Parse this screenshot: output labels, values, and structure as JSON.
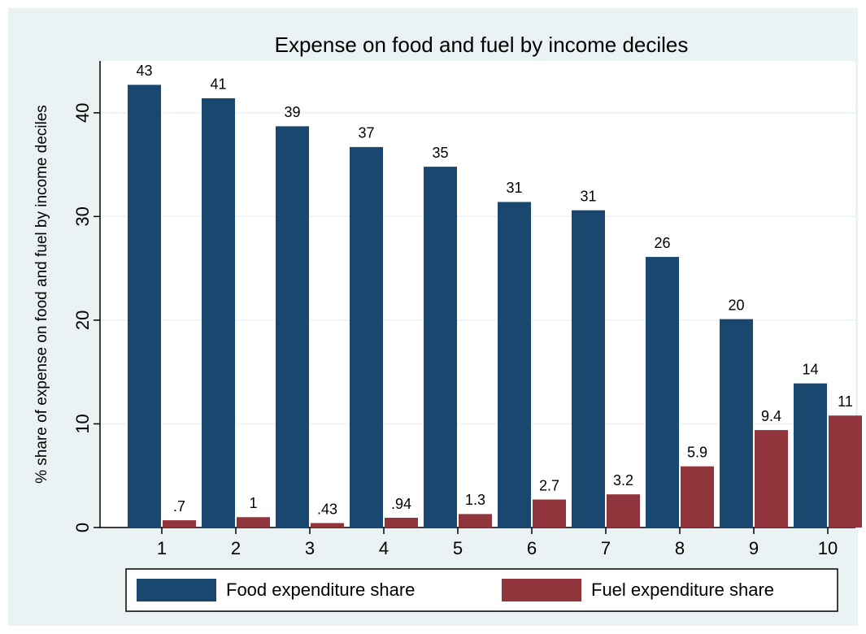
{
  "chart_data": {
    "type": "bar",
    "title": "Expense on food and fuel by income deciles",
    "y_label": "% share of expense on food and fuel by income deciles",
    "categories": [
      "1",
      "2",
      "3",
      "4",
      "5",
      "6",
      "7",
      "8",
      "9",
      "10"
    ],
    "series": [
      {
        "name": "Food expenditure share",
        "color": "#1a476f",
        "values": [
          42.7,
          41.4,
          38.7,
          36.7,
          34.8,
          31.4,
          30.6,
          26.1,
          20.1,
          13.9
        ],
        "value_labels": [
          "43",
          "41",
          "39",
          "37",
          "35",
          "31",
          "31",
          "26",
          "20",
          "14"
        ]
      },
      {
        "name": "Fuel expenditure share",
        "color": "#90353b",
        "values": [
          0.7,
          1.0,
          0.43,
          0.94,
          1.3,
          2.7,
          3.2,
          5.9,
          9.4,
          10.8
        ],
        "value_labels": [
          ".7",
          "1",
          ".43",
          ".94",
          "1.3",
          "2.7",
          "3.2",
          "5.9",
          "9.4",
          "11"
        ]
      }
    ],
    "ylim": [
      0,
      45
    ],
    "yticks": [
      0,
      10,
      20,
      30,
      40
    ],
    "grid": true,
    "legend": "bottom"
  }
}
